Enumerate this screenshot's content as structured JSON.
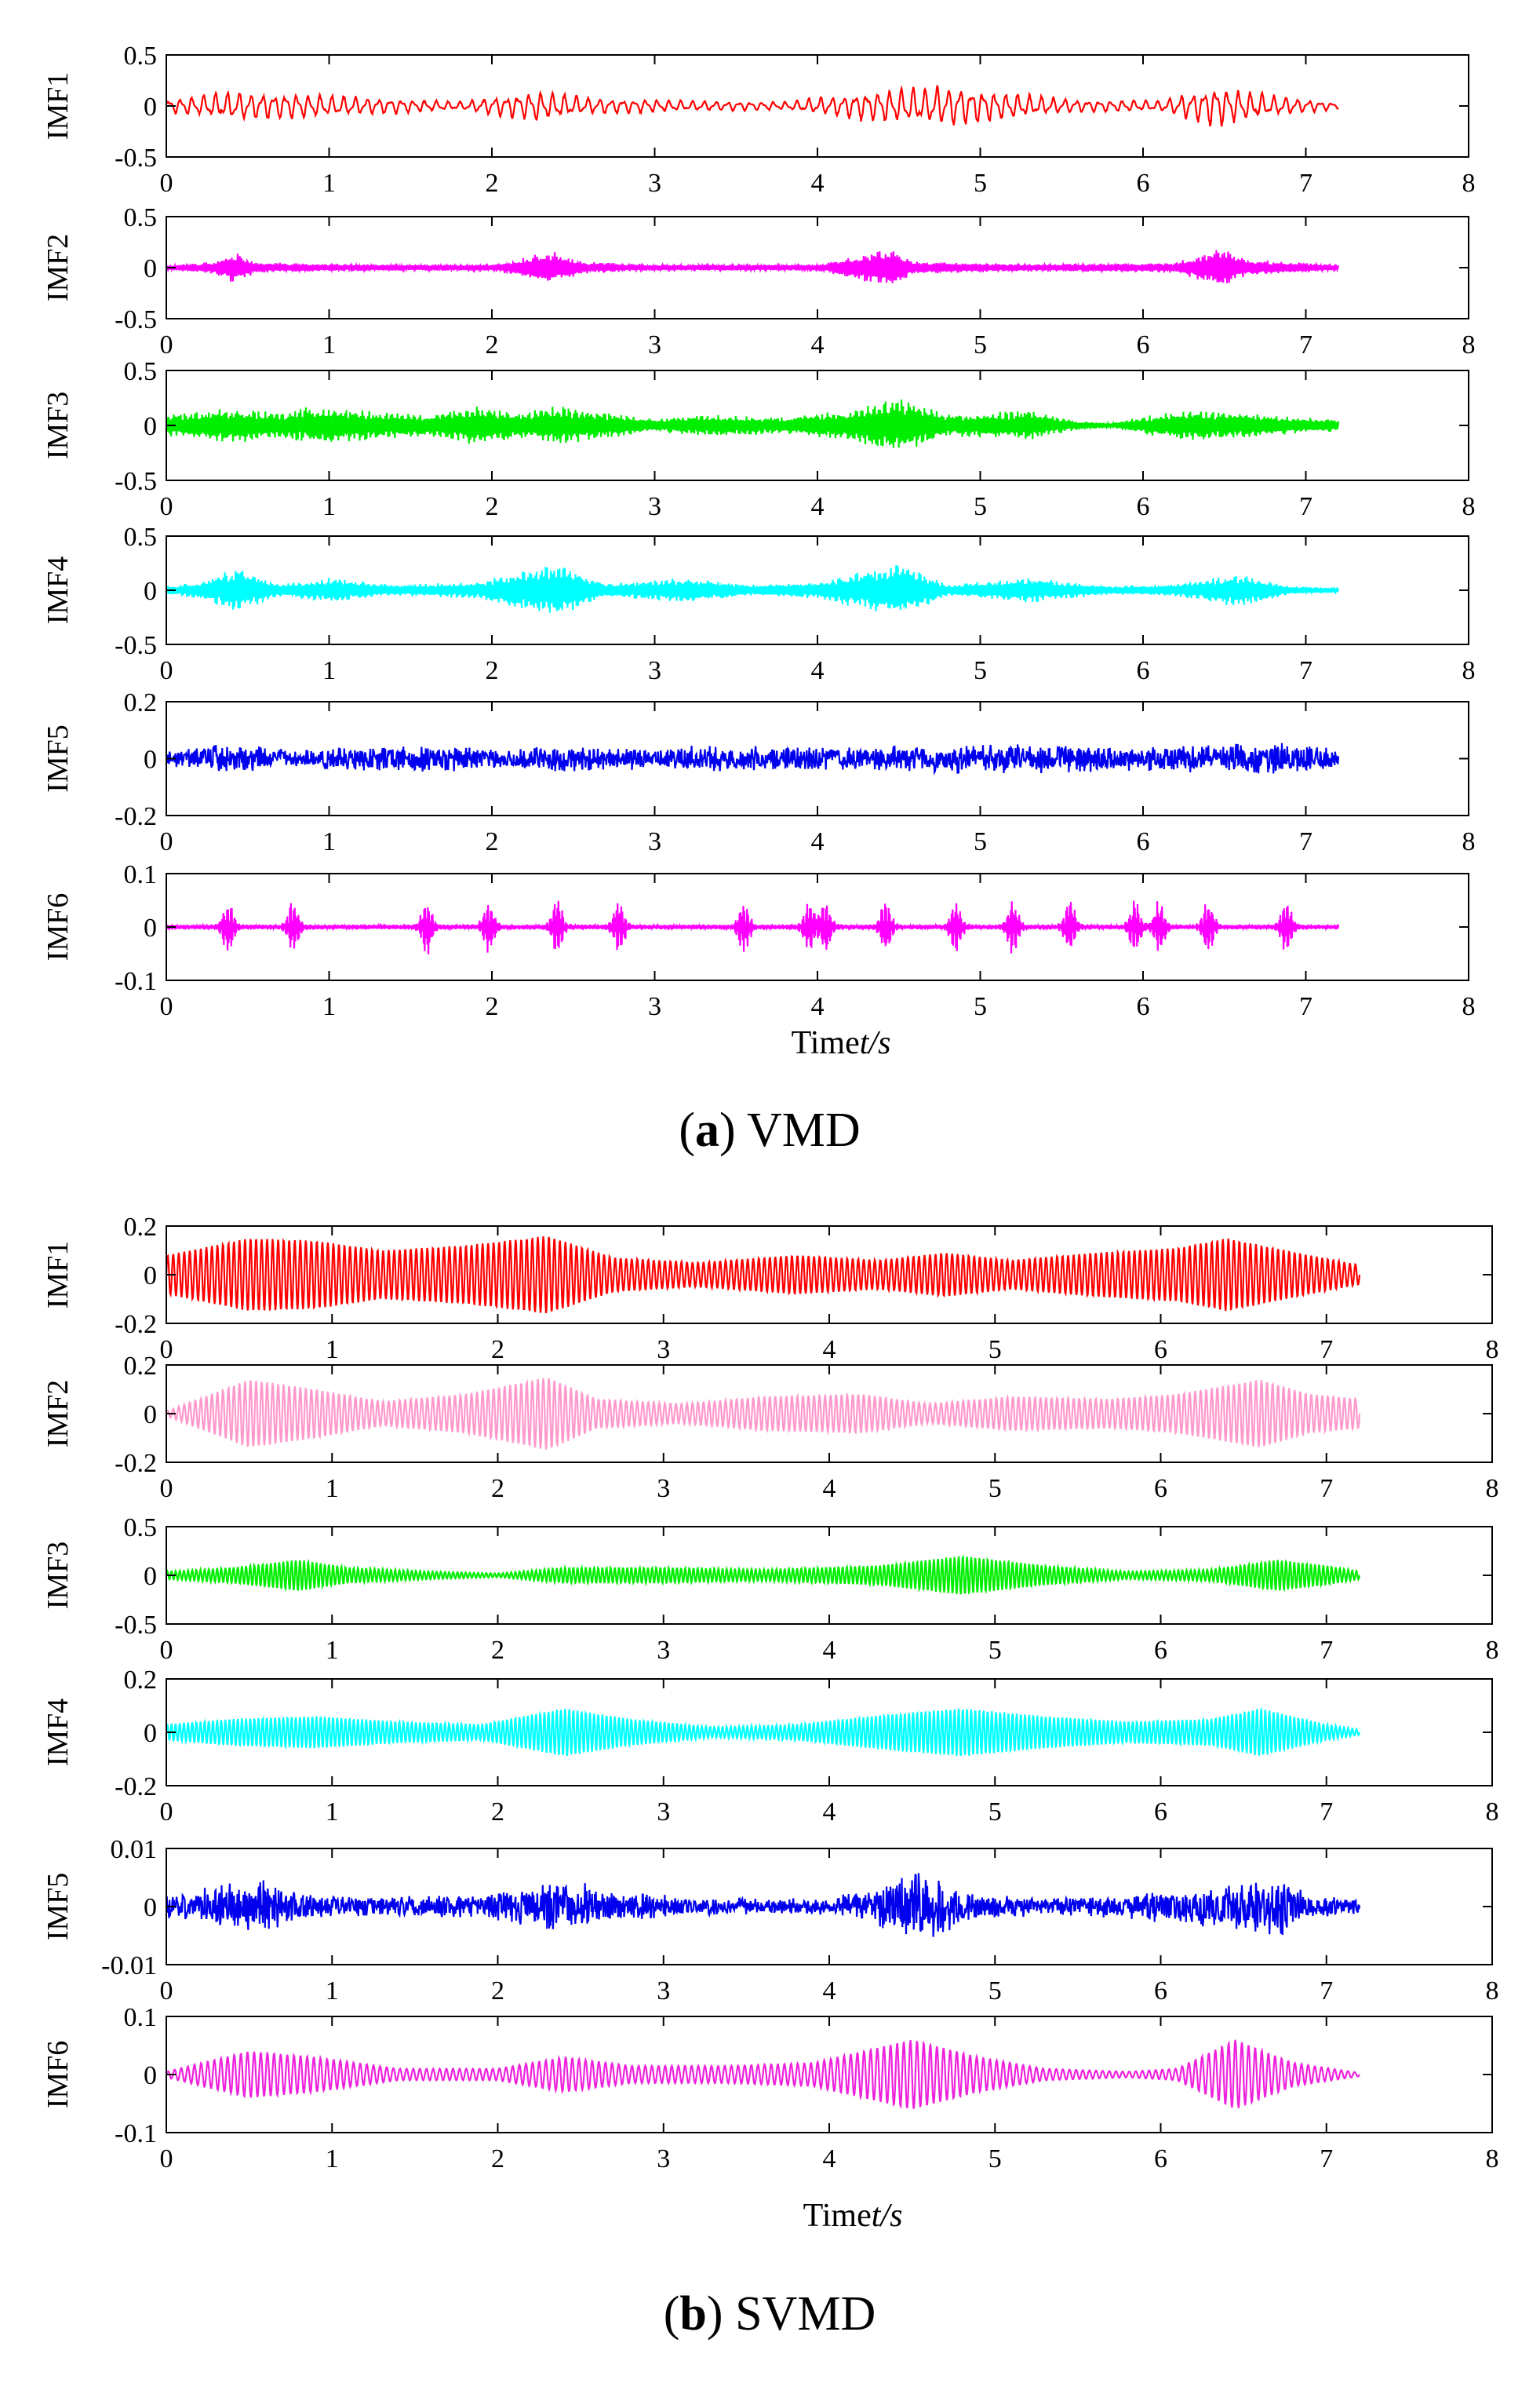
{
  "chart_data": [
    {
      "type": "line",
      "figure": "a",
      "caption_letter": "a",
      "caption_method": "VMD",
      "xlabel_prefix": "Time",
      "xlabel_var": "t/s",
      "xlim": [
        0,
        8
      ],
      "xticks": [
        "0",
        "1",
        "2",
        "3",
        "4",
        "5",
        "6",
        "7",
        "8"
      ],
      "signal_end": 7.2,
      "panels": [
        {
          "name": "IMF1",
          "color": "#ff0000",
          "ylim": [
            -0.5,
            0.5
          ],
          "yticks": [
            "0.5",
            "0",
            "-0.5"
          ],
          "style": "lowfreq",
          "amp": 0.12,
          "freq": 14,
          "envelope": [
            [
              0,
              0.06
            ],
            [
              0.4,
              0.14
            ],
            [
              0.8,
              0.12
            ],
            [
              1.3,
              0.08
            ],
            [
              1.8,
              0.04
            ],
            [
              2.3,
              0.15
            ],
            [
              2.6,
              0.08
            ],
            [
              3.2,
              0.05
            ],
            [
              3.8,
              0.04
            ],
            [
              4.4,
              0.16
            ],
            [
              4.7,
              0.18
            ],
            [
              4.85,
              0.2
            ],
            [
              5.2,
              0.12
            ],
            [
              5.6,
              0.06
            ],
            [
              6.1,
              0.05
            ],
            [
              6.45,
              0.2
            ],
            [
              6.8,
              0.1
            ],
            [
              7.2,
              0.03
            ]
          ]
        },
        {
          "name": "IMF2",
          "color": "#ff00ff",
          "ylim": [
            -0.5,
            0.5
          ],
          "yticks": [
            "0.5",
            "0",
            "-0.5"
          ],
          "style": "bursts",
          "amp": 0.2,
          "freq": 60,
          "envelope": [
            [
              0,
              0.02
            ],
            [
              0.3,
              0.06
            ],
            [
              0.42,
              0.16
            ],
            [
              0.55,
              0.05
            ],
            [
              0.9,
              0.04
            ],
            [
              1.4,
              0.03
            ],
            [
              2.0,
              0.03
            ],
            [
              2.38,
              0.17
            ],
            [
              2.55,
              0.06
            ],
            [
              3.0,
              0.03
            ],
            [
              3.6,
              0.03
            ],
            [
              4.0,
              0.03
            ],
            [
              4.45,
              0.2
            ],
            [
              4.6,
              0.06
            ],
            [
              5.2,
              0.04
            ],
            [
              5.8,
              0.04
            ],
            [
              6.2,
              0.05
            ],
            [
              6.48,
              0.2
            ],
            [
              6.65,
              0.08
            ],
            [
              7.2,
              0.03
            ]
          ]
        },
        {
          "name": "IMF3",
          "color": "#00ee00",
          "ylim": [
            -0.5,
            0.5
          ],
          "yticks": [
            "0.5",
            "0",
            "-0.5"
          ],
          "style": "dense",
          "amp": 0.18,
          "freq": 120,
          "envelope": [
            [
              0,
              0.1
            ],
            [
              0.4,
              0.16
            ],
            [
              0.7,
              0.12
            ],
            [
              0.9,
              0.18
            ],
            [
              1.2,
              0.14
            ],
            [
              1.6,
              0.1
            ],
            [
              1.9,
              0.18
            ],
            [
              2.2,
              0.12
            ],
            [
              2.4,
              0.18
            ],
            [
              2.7,
              0.12
            ],
            [
              3.0,
              0.06
            ],
            [
              3.3,
              0.1
            ],
            [
              3.8,
              0.08
            ],
            [
              4.2,
              0.14
            ],
            [
              4.5,
              0.26
            ],
            [
              4.8,
              0.1
            ],
            [
              5.3,
              0.14
            ],
            [
              5.6,
              0.04
            ],
            [
              5.8,
              0.02
            ],
            [
              6.2,
              0.14
            ],
            [
              6.6,
              0.12
            ],
            [
              6.9,
              0.08
            ],
            [
              7.2,
              0.06
            ]
          ]
        },
        {
          "name": "IMF4",
          "color": "#00ffff",
          "ylim": [
            -0.5,
            0.5
          ],
          "yticks": [
            "0.5",
            "0",
            "-0.5"
          ],
          "style": "dense",
          "amp": 0.2,
          "freq": 120,
          "envelope": [
            [
              0,
              0.04
            ],
            [
              0.2,
              0.08
            ],
            [
              0.45,
              0.22
            ],
            [
              0.7,
              0.06
            ],
            [
              1.0,
              0.12
            ],
            [
              1.4,
              0.05
            ],
            [
              1.9,
              0.08
            ],
            [
              2.4,
              0.26
            ],
            [
              2.7,
              0.06
            ],
            [
              3.2,
              0.12
            ],
            [
              3.6,
              0.05
            ],
            [
              4.0,
              0.08
            ],
            [
              4.5,
              0.26
            ],
            [
              4.8,
              0.05
            ],
            [
              5.3,
              0.12
            ],
            [
              5.8,
              0.04
            ],
            [
              6.2,
              0.06
            ],
            [
              6.6,
              0.16
            ],
            [
              6.9,
              0.04
            ],
            [
              7.2,
              0.02
            ]
          ]
        },
        {
          "name": "IMF5",
          "color": "#0000ee",
          "ylim": [
            -0.2,
            0.2
          ],
          "yticks": [
            "0.2",
            "0",
            "-0.2"
          ],
          "style": "noise",
          "amp": 0.05,
          "freq": 200,
          "envelope": [
            [
              0,
              0.03
            ],
            [
              0.4,
              0.06
            ],
            [
              0.8,
              0.03
            ],
            [
              1.0,
              0.04
            ],
            [
              1.5,
              0.05
            ],
            [
              2.0,
              0.045
            ],
            [
              2.4,
              0.05
            ],
            [
              3.0,
              0.04
            ],
            [
              3.4,
              0.05
            ],
            [
              4.0,
              0.045
            ],
            [
              4.5,
              0.05
            ],
            [
              5.0,
              0.06
            ],
            [
              5.5,
              0.05
            ],
            [
              6.0,
              0.045
            ],
            [
              6.5,
              0.055
            ],
            [
              6.9,
              0.06
            ],
            [
              7.2,
              0.04
            ]
          ]
        },
        {
          "name": "IMF6",
          "color": "#ff00ff",
          "ylim": [
            -0.1,
            0.1
          ],
          "yticks": [
            "0.1",
            "0",
            "-0.1"
          ],
          "style": "spikes",
          "amp": 0.05,
          "freq": 150,
          "envelope": [
            [
              0,
              0.005
            ]
          ],
          "spikes": [
            0.38,
            0.78,
            1.6,
            1.98,
            2.4,
            2.78,
            3.55,
            3.95,
            4.05,
            4.42,
            4.85,
            5.2,
            5.55,
            5.95,
            6.1,
            6.4,
            6.88
          ]
        }
      ]
    },
    {
      "type": "line",
      "figure": "b",
      "caption_letter": "b",
      "caption_method": "SVMD",
      "xlabel_prefix": "Time",
      "xlabel_var": "t/s",
      "xlim": [
        0,
        8
      ],
      "xticks": [
        "0",
        "1",
        "2",
        "3",
        "4",
        "5",
        "6",
        "7",
        "8"
      ],
      "signal_end": 7.2,
      "panels": [
        {
          "name": "IMF1",
          "color": "#ff0000",
          "ylim": [
            -0.2,
            0.2
          ],
          "yticks": [
            "0.2",
            "0",
            "-0.2"
          ],
          "style": "am",
          "amp": 0.15,
          "freq": 30,
          "envelope": [
            [
              0,
              0.08
            ],
            [
              0.5,
              0.15
            ],
            [
              0.9,
              0.14
            ],
            [
              1.3,
              0.1
            ],
            [
              1.8,
              0.12
            ],
            [
              2.3,
              0.16
            ],
            [
              2.7,
              0.07
            ],
            [
              3.2,
              0.05
            ],
            [
              3.8,
              0.08
            ],
            [
              4.3,
              0.06
            ],
            [
              4.7,
              0.09
            ],
            [
              5.1,
              0.06
            ],
            [
              5.6,
              0.09
            ],
            [
              6.1,
              0.11
            ],
            [
              6.4,
              0.15
            ],
            [
              6.9,
              0.08
            ],
            [
              7.2,
              0.04
            ]
          ]
        },
        {
          "name": "IMF2",
          "color": "#ff99cc",
          "ylim": [
            -0.2,
            0.2
          ],
          "yticks": [
            "0.2",
            "0",
            "-0.2"
          ],
          "style": "am",
          "amp": 0.15,
          "freq": 30,
          "envelope": [
            [
              0,
              0.01
            ],
            [
              0.5,
              0.14
            ],
            [
              0.9,
              0.1
            ],
            [
              1.3,
              0.05
            ],
            [
              1.8,
              0.08
            ],
            [
              2.3,
              0.15
            ],
            [
              2.6,
              0.06
            ],
            [
              3.1,
              0.04
            ],
            [
              3.6,
              0.07
            ],
            [
              4.2,
              0.08
            ],
            [
              4.6,
              0.04
            ],
            [
              5.1,
              0.07
            ],
            [
              5.7,
              0.06
            ],
            [
              6.1,
              0.08
            ],
            [
              6.6,
              0.14
            ],
            [
              6.9,
              0.08
            ],
            [
              7.2,
              0.06
            ]
          ]
        },
        {
          "name": "IMF3",
          "color": "#00ee00",
          "ylim": [
            -0.5,
            0.5
          ],
          "yticks": [
            "0.5",
            "0",
            "-0.5"
          ],
          "style": "am",
          "amp": 0.18,
          "freq": 40,
          "envelope": [
            [
              0,
              0.04
            ],
            [
              0.4,
              0.08
            ],
            [
              0.8,
              0.16
            ],
            [
              1.1,
              0.08
            ],
            [
              1.6,
              0.04
            ],
            [
              2.0,
              0.02
            ],
            [
              2.4,
              0.08
            ],
            [
              3.0,
              0.08
            ],
            [
              3.6,
              0.06
            ],
            [
              4.3,
              0.1
            ],
            [
              4.8,
              0.2
            ],
            [
              5.3,
              0.1
            ],
            [
              5.8,
              0.04
            ],
            [
              6.3,
              0.06
            ],
            [
              6.7,
              0.16
            ],
            [
              7.0,
              0.1
            ],
            [
              7.2,
              0.04
            ]
          ]
        },
        {
          "name": "IMF4",
          "color": "#00ffff",
          "ylim": [
            -0.2,
            0.2
          ],
          "yticks": [
            "0.2",
            "0",
            "-0.2"
          ],
          "style": "am",
          "amp": 0.08,
          "freq": 40,
          "envelope": [
            [
              0,
              0.03
            ],
            [
              0.4,
              0.05
            ],
            [
              0.9,
              0.06
            ],
            [
              1.4,
              0.04
            ],
            [
              1.9,
              0.03
            ],
            [
              2.4,
              0.09
            ],
            [
              2.8,
              0.05
            ],
            [
              3.3,
              0.02
            ],
            [
              3.8,
              0.03
            ],
            [
              4.4,
              0.07
            ],
            [
              4.8,
              0.09
            ],
            [
              5.3,
              0.06
            ],
            [
              5.8,
              0.04
            ],
            [
              6.3,
              0.05
            ],
            [
              6.6,
              0.09
            ],
            [
              7.0,
              0.03
            ],
            [
              7.2,
              0.01
            ]
          ]
        },
        {
          "name": "IMF5",
          "color": "#0000ee",
          "ylim": [
            -0.01,
            0.01
          ],
          "yticks": [
            "0.01",
            "0",
            "-0.01"
          ],
          "style": "noise",
          "amp": 0.004,
          "freq": 200,
          "envelope": [
            [
              0,
              0.002
            ],
            [
              0.3,
              0.004
            ],
            [
              0.6,
              0.005
            ],
            [
              0.9,
              0.002
            ],
            [
              1.4,
              0.002
            ],
            [
              1.9,
              0.002
            ],
            [
              2.4,
              0.005
            ],
            [
              2.7,
              0.003
            ],
            [
              3.3,
              0.0015
            ],
            [
              4.0,
              0.0015
            ],
            [
              4.3,
              0.004
            ],
            [
              4.55,
              0.007
            ],
            [
              4.8,
              0.003
            ],
            [
              5.3,
              0.0015
            ],
            [
              5.7,
              0.002
            ],
            [
              6.0,
              0.003
            ],
            [
              6.4,
              0.004
            ],
            [
              6.75,
              0.006
            ],
            [
              6.9,
              0.002
            ],
            [
              7.2,
              0.0015
            ]
          ]
        },
        {
          "name": "IMF6",
          "color": "#ee22dd",
          "ylim": [
            -0.1,
            0.1
          ],
          "yticks": [
            "0.1",
            "0",
            "-0.1"
          ],
          "style": "am",
          "amp": 0.05,
          "freq": 25,
          "envelope": [
            [
              0,
              0.005
            ],
            [
              0.5,
              0.04
            ],
            [
              0.9,
              0.03
            ],
            [
              1.4,
              0.01
            ],
            [
              2.0,
              0.01
            ],
            [
              2.4,
              0.03
            ],
            [
              2.8,
              0.015
            ],
            [
              3.4,
              0.015
            ],
            [
              3.9,
              0.02
            ],
            [
              4.5,
              0.06
            ],
            [
              4.9,
              0.03
            ],
            [
              5.3,
              0.01
            ],
            [
              5.8,
              0.005
            ],
            [
              6.1,
              0.01
            ],
            [
              6.45,
              0.06
            ],
            [
              6.8,
              0.02
            ],
            [
              7.2,
              0.003
            ]
          ]
        }
      ]
    }
  ]
}
